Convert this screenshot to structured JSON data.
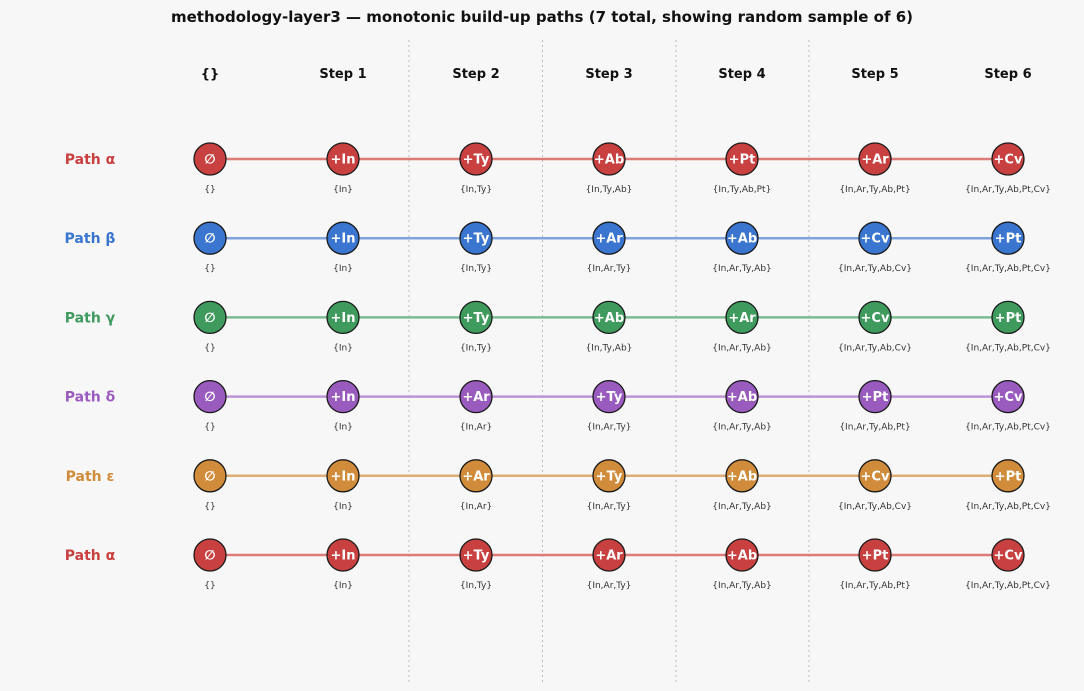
{
  "title": "methodology-layer3 — monotonic build-up paths  (7 total, showing random sample of 6)",
  "columns": [
    "{}",
    "Step 1",
    "Step 2",
    "Step 3",
    "Step 4",
    "Step 5",
    "Step 6"
  ],
  "paths": [
    {
      "label": "Path α",
      "color": "#c8403f",
      "line_color": "#dd7b79",
      "nodes": [
        "∅",
        "+In",
        "+Ty",
        "+Ab",
        "+Pt",
        "+Ar",
        "+Cv"
      ],
      "sets": [
        "{}",
        "{In}",
        "{In,Ty}",
        "{In,Ty,Ab}",
        "{In,Ty,Ab,Pt}",
        "{In,Ar,Ty,Ab,Pt}",
        "{In,Ar,Ty,Ab,Pt,Cv}"
      ]
    },
    {
      "label": "Path β",
      "color": "#3a75cf",
      "line_color": "#7fa4dd",
      "nodes": [
        "∅",
        "+In",
        "+Ty",
        "+Ar",
        "+Ab",
        "+Cv",
        "+Pt"
      ],
      "sets": [
        "{}",
        "{In}",
        "{In,Ty}",
        "{In,Ar,Ty}",
        "{In,Ar,Ty,Ab}",
        "{In,Ar,Ty,Ab,Cv}",
        "{In,Ar,Ty,Ab,Pt,Cv}"
      ]
    },
    {
      "label": "Path γ",
      "color": "#3f9a5e",
      "line_color": "#7bbd8f",
      "nodes": [
        "∅",
        "+In",
        "+Ty",
        "+Ab",
        "+Ar",
        "+Cv",
        "+Pt"
      ],
      "sets": [
        "{}",
        "{In}",
        "{In,Ty}",
        "{In,Ty,Ab}",
        "{In,Ar,Ty,Ab}",
        "{In,Ar,Ty,Ab,Cv}",
        "{In,Ar,Ty,Ab,Pt,Cv}"
      ]
    },
    {
      "label": "Path δ",
      "color": "#9a5bbf",
      "line_color": "#bd93d8",
      "nodes": [
        "∅",
        "+In",
        "+Ar",
        "+Ty",
        "+Ab",
        "+Pt",
        "+Cv"
      ],
      "sets": [
        "{}",
        "{In}",
        "{In,Ar}",
        "{In,Ar,Ty}",
        "{In,Ar,Ty,Ab}",
        "{In,Ar,Ty,Ab,Pt}",
        "{In,Ar,Ty,Ab,Pt,Cv}"
      ]
    },
    {
      "label": "Path ε",
      "color": "#d08c3a",
      "line_color": "#dcae76",
      "nodes": [
        "∅",
        "+In",
        "+Ar",
        "+Ty",
        "+Ab",
        "+Cv",
        "+Pt"
      ],
      "sets": [
        "{}",
        "{In}",
        "{In,Ar}",
        "{In,Ar,Ty}",
        "{In,Ar,Ty,Ab}",
        "{In,Ar,Ty,Ab,Cv}",
        "{In,Ar,Ty,Ab,Pt,Cv}"
      ]
    },
    {
      "label": "Path α",
      "color": "#c8403f",
      "line_color": "#dd7b79",
      "nodes": [
        "∅",
        "+In",
        "+Ty",
        "+Ar",
        "+Ab",
        "+Pt",
        "+Cv"
      ],
      "sets": [
        "{}",
        "{In}",
        "{In,Ty}",
        "{In,Ar,Ty}",
        "{In,Ar,Ty,Ab}",
        "{In,Ar,Ty,Ab,Pt}",
        "{In,Ar,Ty,Ab,Pt,Cv}"
      ]
    }
  ]
}
